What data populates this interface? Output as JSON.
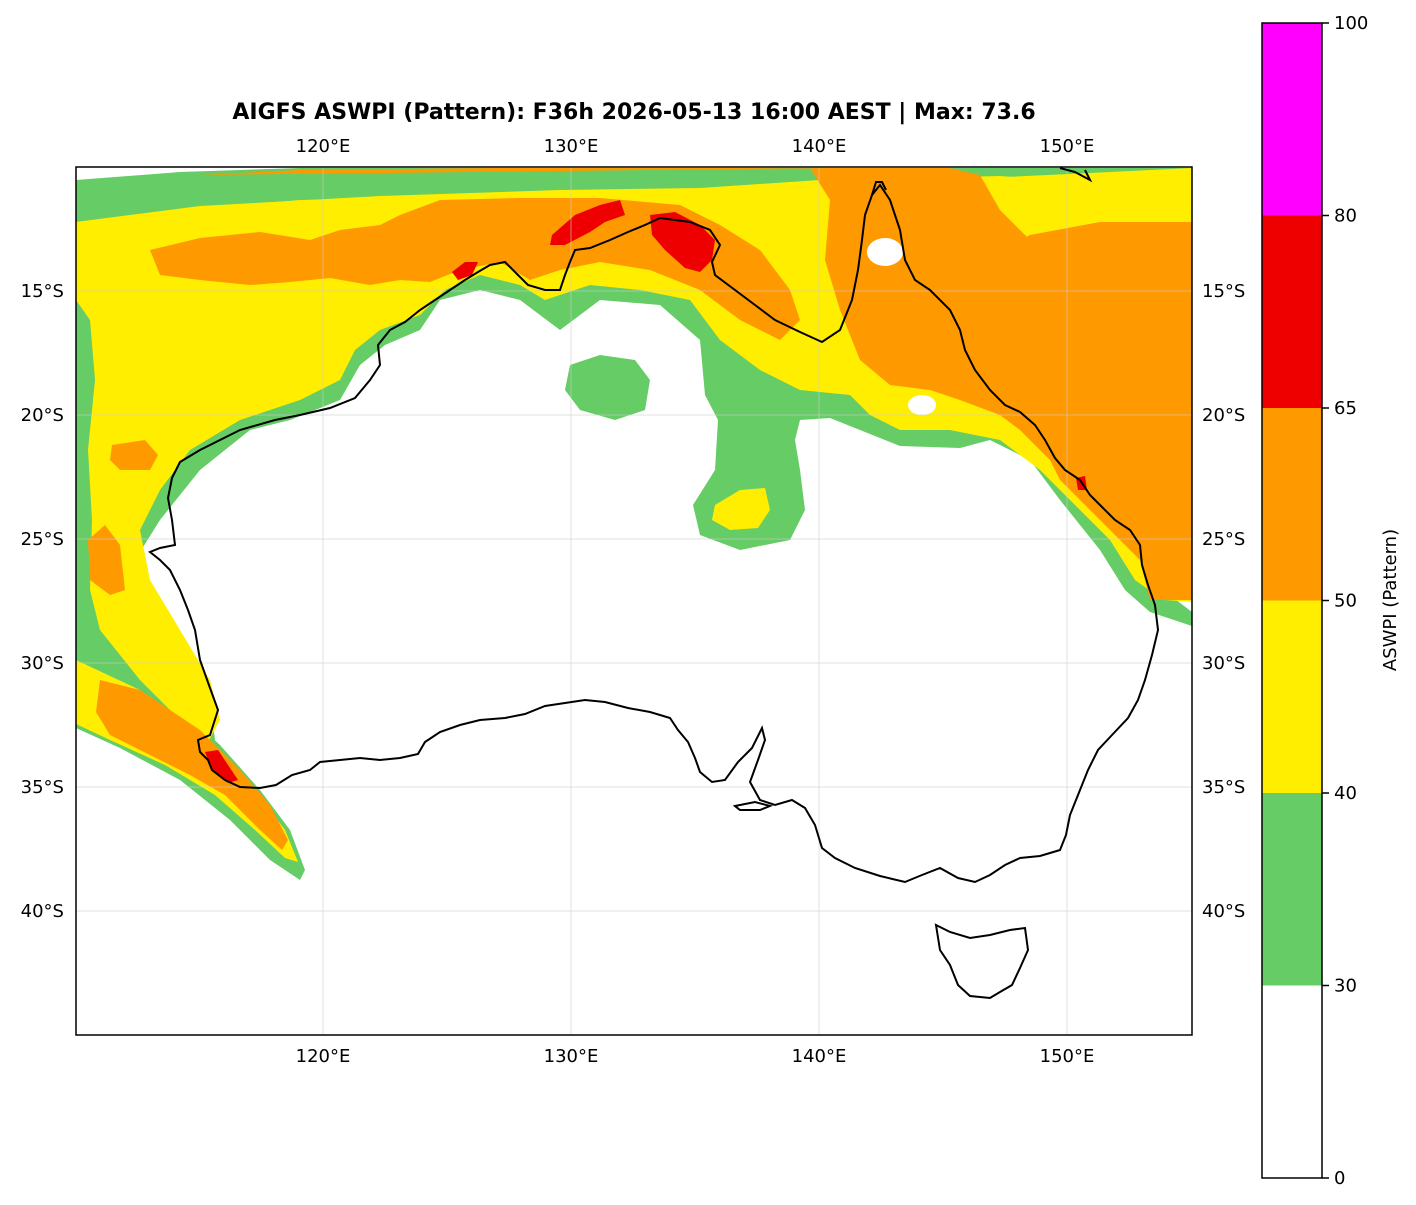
{
  "title": "AIGFS ASWPI (Pattern): F36h 2026-05-13 16:00 AEST | Max: 73.6",
  "map": {
    "lon_range": [
      110,
      155
    ],
    "lat_range": [
      -45,
      -10
    ],
    "lon_ticks": [
      "120°E",
      "130°E",
      "140°E",
      "150°E"
    ],
    "lat_ticks": [
      "15°S",
      "20°S",
      "25°S",
      "30°S",
      "35°S",
      "40°S"
    ],
    "gridlines": true
  },
  "colorbar": {
    "label": "ASWPI (Pattern)",
    "tick_labels": [
      "0",
      "30",
      "40",
      "50",
      "65",
      "80",
      "100"
    ],
    "levels": [
      0,
      30,
      40,
      50,
      65,
      80,
      100
    ],
    "colors": [
      "#ffffff",
      "#66cc66",
      "#ffee00",
      "#ff9900",
      "#ee0000",
      "#ff00ff"
    ]
  }
}
